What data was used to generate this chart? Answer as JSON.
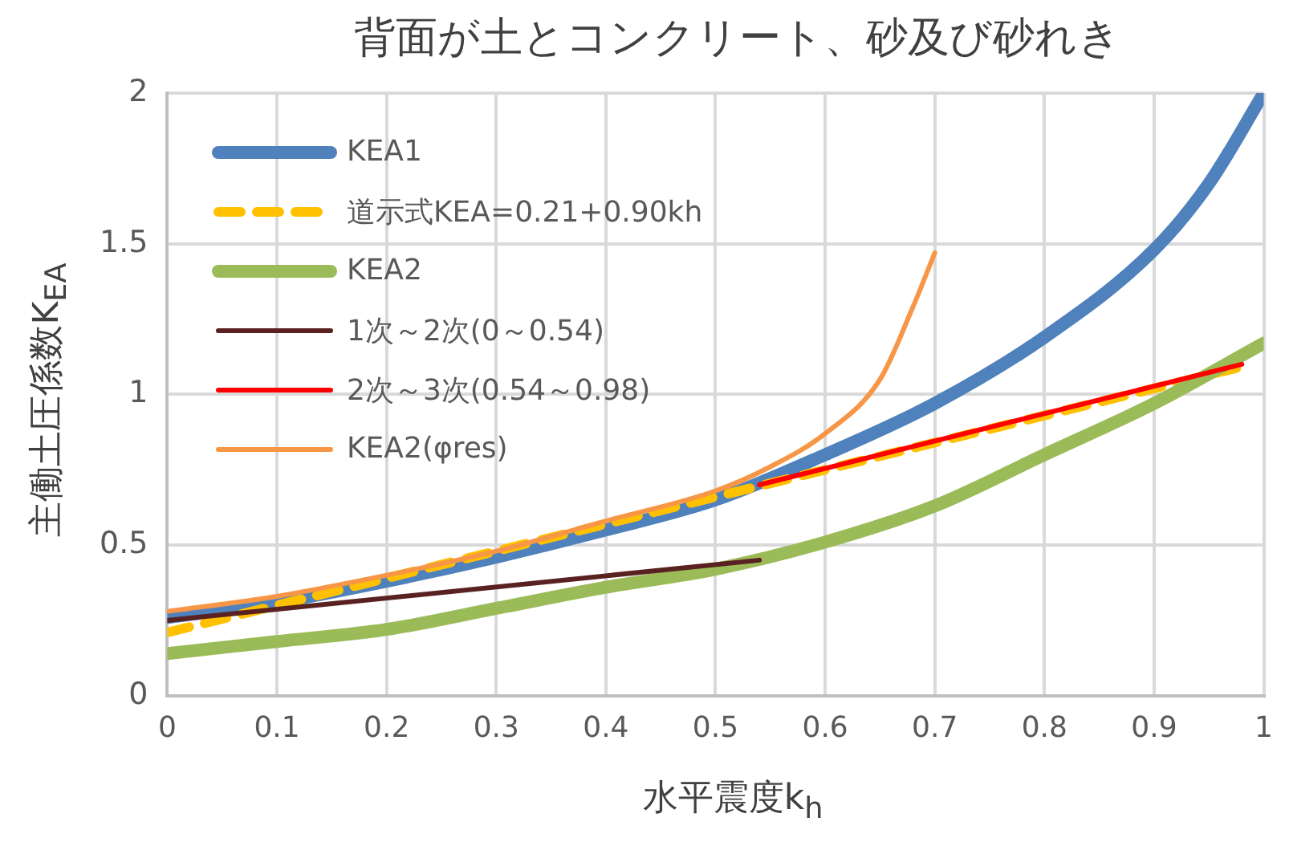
{
  "chart_data": {
    "type": "line",
    "title": "背面が土とコンクリート、砂及び砂れき",
    "xlabel": "水平震度k$_{h}$",
    "ylabel": "主働土圧係数K$_{EA}$",
    "xlim": [
      0,
      1
    ],
    "xticks": [
      0,
      0.1,
      0.2,
      0.3,
      0.4,
      0.5,
      0.6,
      0.7,
      0.8,
      0.9,
      1
    ],
    "ylim": [
      0,
      2
    ],
    "yticks": [
      0,
      0.5,
      1,
      1.5,
      2
    ],
    "grid": true,
    "legend": "top left",
    "marker": "none",
    "series": [
      {
        "name": "KEA1",
        "color": "#4f81bd",
        "x": [
          0,
          0.1,
          0.2,
          0.3,
          0.4,
          0.5,
          0.6,
          0.7,
          0.8,
          0.9,
          0.95,
          1
        ],
        "values": [
          0.26,
          0.31,
          0.38,
          0.46,
          0.55,
          0.65,
          0.8,
          0.97,
          1.19,
          1.48,
          1.7,
          2.0
        ]
      },
      {
        "name": "道示式KEA=0.21+0.90kh",
        "color": "#ffc000",
        "line_style": "dashed",
        "x": [
          0,
          0.98
        ],
        "values": [
          0.21,
          1.092
        ]
      },
      {
        "name": "KEA2",
        "color": "#9bbb59",
        "x": [
          0,
          0.1,
          0.2,
          0.3,
          0.4,
          0.5,
          0.6,
          0.7,
          0.8,
          0.9,
          1
        ],
        "values": [
          0.14,
          0.18,
          0.22,
          0.29,
          0.36,
          0.42,
          0.51,
          0.63,
          0.8,
          0.97,
          1.17
        ]
      },
      {
        "name": "1次～2次(0～0.54)",
        "color": "#5a2121",
        "x": [
          0,
          0.54
        ],
        "values": [
          0.25,
          0.45
        ]
      },
      {
        "name": "2次～3次(0.54～0.98)",
        "color": "#ff0000",
        "x": [
          0.54,
          0.98
        ],
        "values": [
          0.7,
          1.1
        ]
      },
      {
        "name": "KEA2(φres)",
        "color": "#f79646",
        "x": [
          0,
          0.1,
          0.2,
          0.3,
          0.4,
          0.5,
          0.55,
          0.6,
          0.65,
          0.68,
          0.7
        ],
        "values": [
          0.28,
          0.33,
          0.4,
          0.48,
          0.58,
          0.68,
          0.76,
          0.87,
          1.05,
          1.29,
          1.47
        ]
      }
    ]
  }
}
